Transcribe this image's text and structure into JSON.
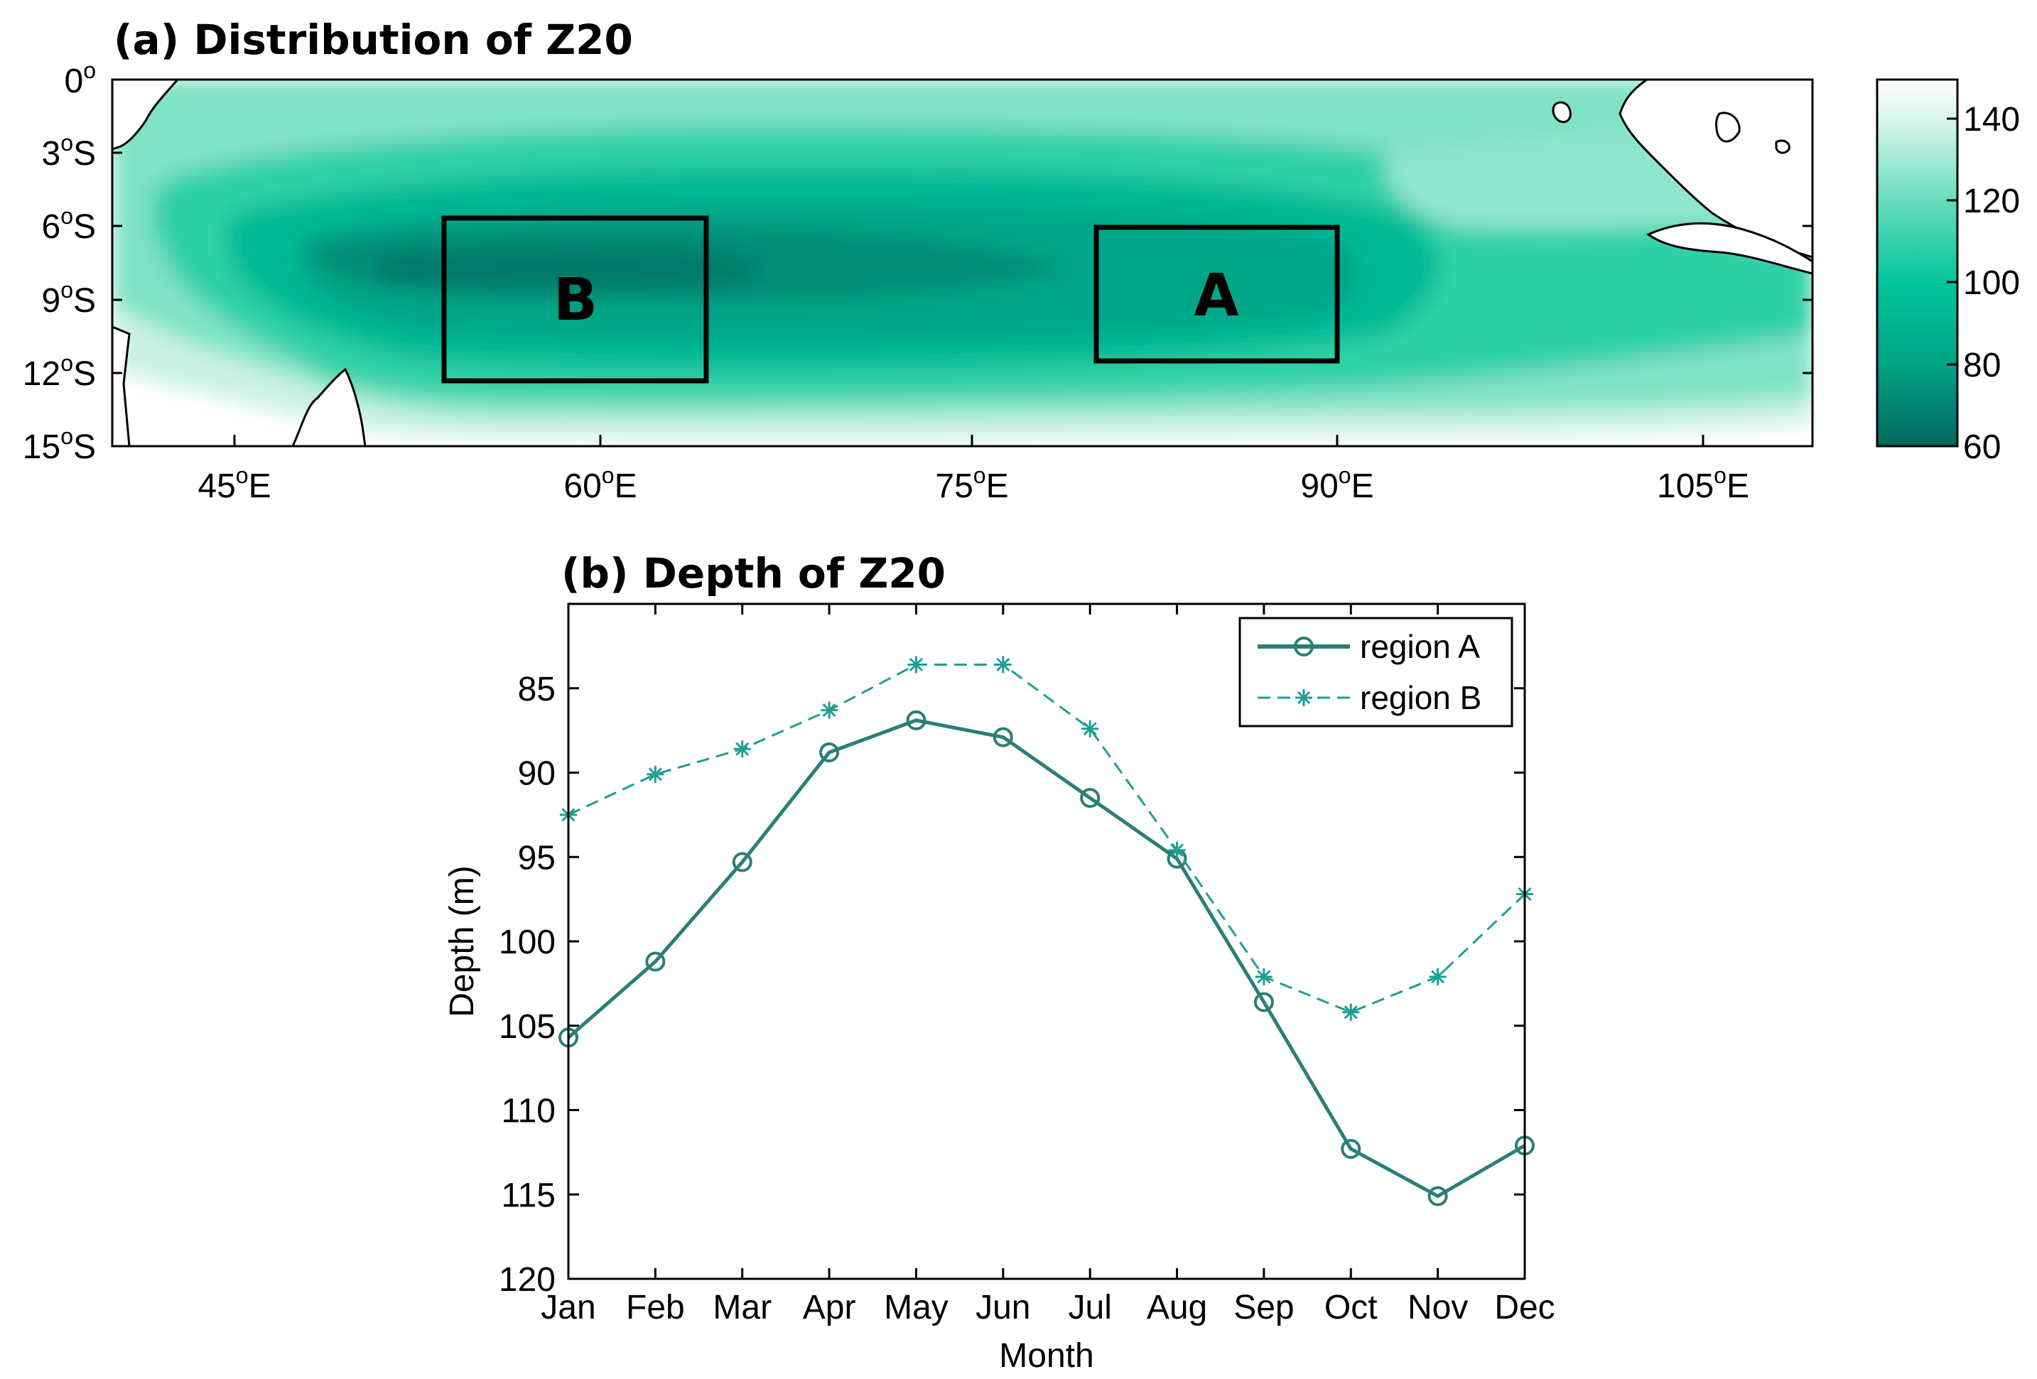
{
  "chart_data": [
    {
      "type": "heatmap",
      "title": "(a) Distribution of Z20",
      "x_tick_labels": [
        {
          "deg": "45",
          "sup": "o",
          "suffix": "E",
          "lon": 45
        },
        {
          "deg": "60",
          "sup": "o",
          "suffix": "E",
          "lon": 60
        },
        {
          "deg": "75",
          "sup": "o",
          "suffix": "E",
          "lon": 75
        },
        {
          "deg": "90",
          "sup": "o",
          "suffix": "E",
          "lon": 90
        },
        {
          "deg": "105",
          "sup": "o",
          "suffix": "E",
          "lon": 105
        }
      ],
      "y_tick_labels": [
        {
          "deg": "0",
          "sup": "o",
          "suffix": "",
          "lat": 0
        },
        {
          "deg": "3",
          "sup": "o",
          "suffix": "S",
          "lat": -3
        },
        {
          "deg": "6",
          "sup": "o",
          "suffix": "S",
          "lat": -6
        },
        {
          "deg": "9",
          "sup": "o",
          "suffix": "S",
          "lat": -9
        },
        {
          "deg": "12",
          "sup": "o",
          "suffix": "S",
          "lat": -12
        },
        {
          "deg": "15",
          "sup": "o",
          "suffix": "S",
          "lat": -15
        }
      ],
      "xlim": [
        40,
        110
      ],
      "ylim": [
        -15,
        0
      ],
      "colorbar": {
        "ticks": [
          "60",
          "80",
          "100",
          "120",
          "140"
        ],
        "tick_values": [
          60,
          80,
          100,
          120,
          140
        ],
        "range": [
          60,
          150
        ]
      },
      "regions": [
        {
          "label": "B",
          "lon": [
            53.5,
            64.5
          ],
          "lat": [
            -12.3,
            -5.6
          ]
        },
        {
          "label": "A",
          "lon": [
            80.5,
            90.5
          ],
          "lat": [
            -11.6,
            -5.9
          ]
        }
      ],
      "colors": {
        "deep": "#00685c",
        "mid": "#00c49a",
        "shallow": "#f2fcf8"
      }
    },
    {
      "type": "line",
      "title": "(b) Depth of Z20",
      "xlabel": "Month",
      "ylabel": "Depth (m)",
      "categories": [
        "Jan",
        "Feb",
        "Mar",
        "Apr",
        "May",
        "Jun",
        "Jul",
        "Aug",
        "Sep",
        "Oct",
        "Nov",
        "Dec"
      ],
      "ylim": [
        80,
        120
      ],
      "y_reversed": true,
      "y_ticks": [
        "85",
        "90",
        "95",
        "100",
        "105",
        "110",
        "115",
        "120"
      ],
      "y_tick_values": [
        85,
        90,
        95,
        100,
        105,
        110,
        115,
        120
      ],
      "legend_position": "top-right",
      "series": [
        {
          "name": "region A",
          "marker": "circle",
          "line": "solid",
          "color": "#2a7f77",
          "values": [
            105.7,
            101.2,
            95.3,
            88.8,
            86.9,
            87.9,
            91.5,
            95.1,
            103.6,
            112.3,
            115.1,
            112.1
          ]
        },
        {
          "name": "region B",
          "marker": "star",
          "line": "dashed",
          "color": "#1f9e93",
          "values": [
            92.5,
            90.1,
            88.6,
            86.3,
            83.6,
            83.6,
            87.4,
            94.6,
            102.1,
            104.2,
            102.1,
            97.2
          ]
        }
      ]
    }
  ]
}
